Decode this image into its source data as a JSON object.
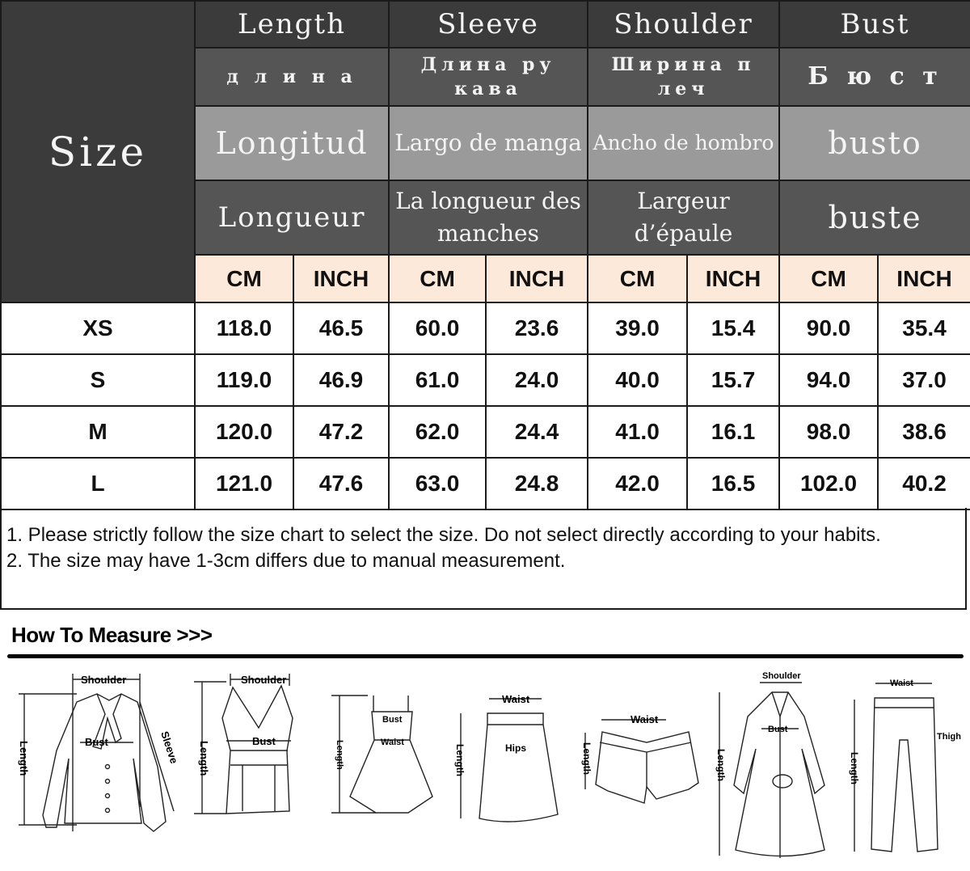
{
  "table": {
    "size_label": "Size",
    "columns": [
      {
        "en": "Length",
        "ru": "д л и н а",
        "es": "Longitud",
        "fr": "Longueur"
      },
      {
        "en": "Sleeve",
        "ru": "Длина ру кава",
        "es": "Largo de manga",
        "fr": "La longueur des manches"
      },
      {
        "en": "Shoulder",
        "ru": "Ширина п леч",
        "es": "Ancho de hombro",
        "fr": "Largeur d’épaule"
      },
      {
        "en": "Bust",
        "ru": "Б ю с т",
        "es": "busto",
        "fr": "buste"
      }
    ],
    "units": [
      "CM",
      "INCH",
      "CM",
      "INCH",
      "CM",
      "INCH",
      "CM",
      "INCH"
    ],
    "rows": [
      {
        "size": "XS",
        "values": [
          "118.0",
          "46.5",
          "60.0",
          "23.6",
          "39.0",
          "15.4",
          "90.0",
          "35.4"
        ]
      },
      {
        "size": "S",
        "values": [
          "119.0",
          "46.9",
          "61.0",
          "24.0",
          "40.0",
          "15.7",
          "94.0",
          "37.0"
        ]
      },
      {
        "size": "M",
        "values": [
          "120.0",
          "47.2",
          "62.0",
          "24.4",
          "41.0",
          "16.1",
          "98.0",
          "38.6"
        ]
      },
      {
        "size": "L",
        "values": [
          "121.0",
          "47.6",
          "63.0",
          "24.8",
          "42.0",
          "16.5",
          "102.0",
          "40.2"
        ]
      }
    ]
  },
  "notes": [
    "1. Please strictly follow the size chart to select the size. Do not select directly according to your habits.",
    "2. The size may have 1-3cm differs due to manual measurement."
  ],
  "how_to_measure": {
    "title": "How To Measure >>>",
    "labels": {
      "shoulder": "Shoulder",
      "bust": "Bust",
      "sleeve": "Sleeve",
      "length": "Length",
      "waist": "Waist",
      "hips": "Hips",
      "thigh": "Thigh"
    }
  },
  "colors": {
    "header_dark": "#3b3b3b",
    "header_mid": "#555555",
    "header_light": "#9a9a9a",
    "unit_row": "#fde9d9"
  }
}
